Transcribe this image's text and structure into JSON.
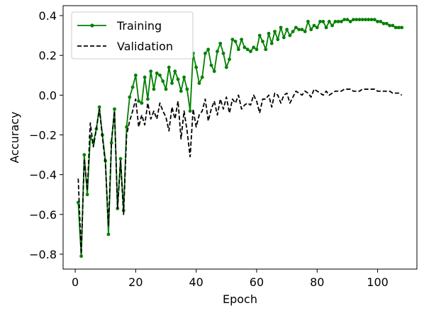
{
  "chart_data": {
    "type": "line",
    "xlabel": "Epoch",
    "ylabel": "Accuracy",
    "xlim": [
      -4,
      113
    ],
    "ylim": [
      -0.875,
      0.45
    ],
    "xticks": [
      0,
      20,
      40,
      60,
      80,
      100
    ],
    "yticks": [
      -0.8,
      -0.6,
      -0.4,
      -0.2,
      0.0,
      0.2,
      0.4
    ],
    "ytick_labels": [
      "−0.8",
      "−0.6",
      "−0.4",
      "−0.2",
      "0.0",
      "0.2",
      "0.4"
    ],
    "grid": false,
    "legend_position": "top-left",
    "x": [
      1,
      2,
      3,
      4,
      5,
      6,
      7,
      8,
      9,
      10,
      11,
      12,
      13,
      14,
      15,
      16,
      17,
      18,
      19,
      20,
      21,
      22,
      23,
      24,
      25,
      26,
      27,
      28,
      29,
      30,
      31,
      32,
      33,
      34,
      35,
      36,
      37,
      38,
      39,
      40,
      41,
      42,
      43,
      44,
      45,
      46,
      47,
      48,
      49,
      50,
      51,
      52,
      53,
      54,
      55,
      56,
      57,
      58,
      59,
      60,
      61,
      62,
      63,
      64,
      65,
      66,
      67,
      68,
      69,
      70,
      71,
      72,
      73,
      74,
      75,
      76,
      77,
      78,
      79,
      80,
      81,
      82,
      83,
      84,
      85,
      86,
      87,
      88,
      89,
      90,
      91,
      92,
      93,
      94,
      95,
      96,
      97,
      98,
      99,
      100,
      101,
      102,
      103,
      104,
      105,
      106,
      107,
      108
    ],
    "series": [
      {
        "name": "Training",
        "color": "#008000",
        "style": "solid-marker",
        "values": [
          -0.54,
          -0.81,
          -0.3,
          -0.5,
          -0.21,
          -0.24,
          -0.17,
          -0.06,
          -0.2,
          -0.33,
          -0.7,
          -0.24,
          -0.07,
          -0.57,
          -0.32,
          -0.58,
          -0.16,
          -0.01,
          0.04,
          0.1,
          -0.03,
          -0.04,
          0.09,
          -0.02,
          0.12,
          0.03,
          0.11,
          0.1,
          0.07,
          0.03,
          0.14,
          0.06,
          0.12,
          0.08,
          0.02,
          0.09,
          0.03,
          -0.08,
          0.21,
          0.14,
          0.06,
          0.09,
          0.21,
          0.23,
          0.15,
          0.12,
          0.22,
          0.26,
          0.21,
          0.14,
          0.18,
          0.28,
          0.27,
          0.23,
          0.28,
          0.24,
          0.23,
          0.22,
          0.24,
          0.23,
          0.3,
          0.27,
          0.23,
          0.31,
          0.26,
          0.32,
          0.28,
          0.34,
          0.29,
          0.33,
          0.3,
          0.32,
          0.34,
          0.33,
          0.33,
          0.32,
          0.37,
          0.33,
          0.35,
          0.34,
          0.37,
          0.37,
          0.34,
          0.37,
          0.35,
          0.37,
          0.37,
          0.37,
          0.38,
          0.38,
          0.37,
          0.38,
          0.38,
          0.38,
          0.38,
          0.38,
          0.38,
          0.38,
          0.38,
          0.37,
          0.37,
          0.36,
          0.36,
          0.35,
          0.35,
          0.34,
          0.34,
          0.34
        ]
      },
      {
        "name": "Validation",
        "color": "#000000",
        "style": "dashed",
        "values": [
          -0.42,
          -0.8,
          -0.32,
          -0.48,
          -0.14,
          -0.26,
          -0.17,
          -0.07,
          -0.21,
          -0.35,
          -0.66,
          -0.23,
          -0.08,
          -0.57,
          -0.33,
          -0.6,
          -0.2,
          -0.13,
          -0.08,
          -0.02,
          -0.16,
          -0.1,
          -0.15,
          -0.04,
          -0.12,
          -0.08,
          -0.12,
          -0.04,
          -0.08,
          -0.11,
          -0.18,
          -0.06,
          -0.12,
          -0.03,
          -0.22,
          -0.08,
          -0.18,
          -0.31,
          -0.07,
          -0.16,
          -0.1,
          -0.08,
          -0.02,
          -0.13,
          -0.07,
          -0.03,
          -0.1,
          -0.02,
          -0.07,
          -0.01,
          -0.09,
          -0.02,
          -0.04,
          0.0,
          -0.07,
          -0.05,
          -0.04,
          -0.05,
          0.0,
          -0.03,
          -0.09,
          -0.02,
          -0.02,
          0.0,
          -0.06,
          0.01,
          0.0,
          -0.04,
          0.0,
          0.01,
          -0.04,
          -0.01,
          0.02,
          0.01,
          0.0,
          0.02,
          0.01,
          -0.01,
          0.03,
          0.02,
          0.01,
          0.0,
          0.02,
          0.0,
          0.01,
          0.02,
          0.02,
          0.02,
          0.03,
          0.03,
          0.03,
          0.02,
          0.02,
          0.02,
          0.03,
          0.03,
          0.03,
          0.03,
          0.03,
          0.02,
          0.02,
          0.02,
          0.02,
          0.02,
          0.01,
          0.01,
          0.01,
          0.0
        ]
      }
    ]
  }
}
